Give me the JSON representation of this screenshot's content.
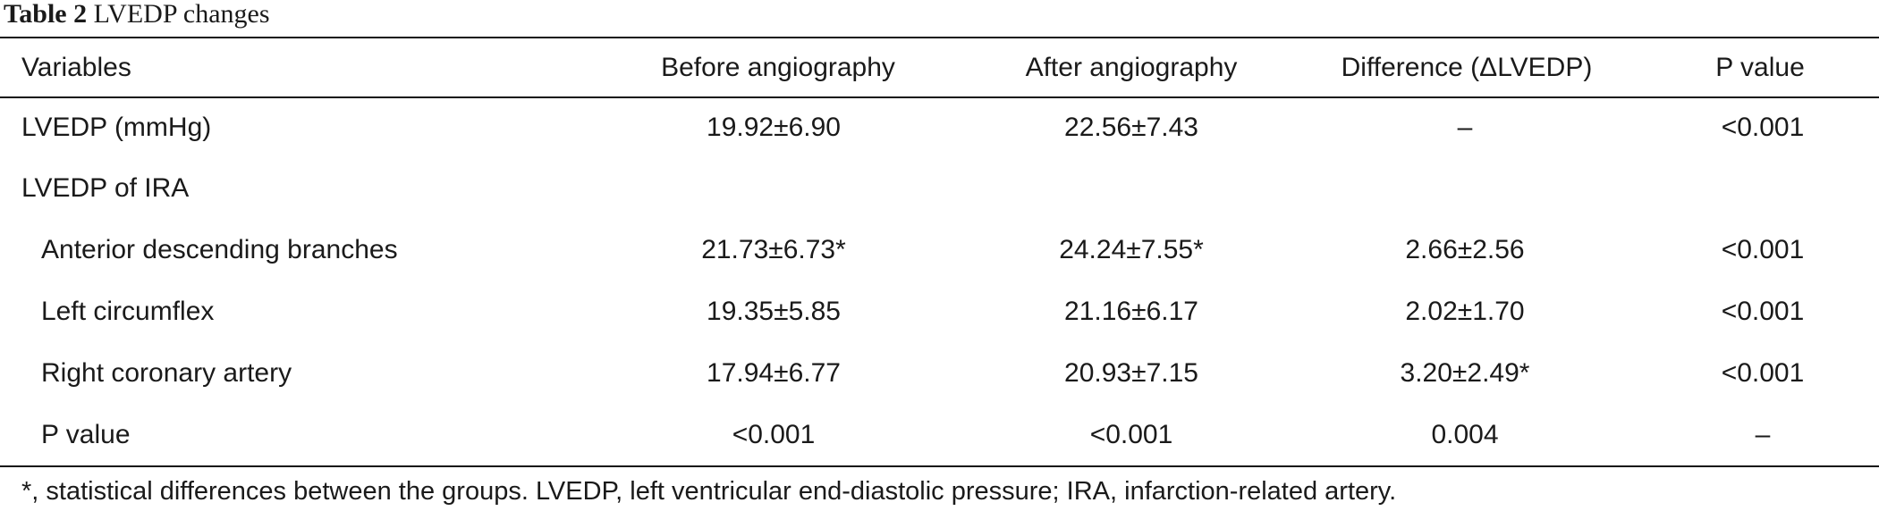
{
  "caption": {
    "label": "Table 2",
    "title": "LVEDP changes"
  },
  "table": {
    "headers": [
      "Variables",
      "Before angiography",
      "After angiography",
      "Difference (ΔLVEDP)",
      "P value"
    ],
    "rows": [
      {
        "cells": [
          "LVEDP (mmHg)",
          "19.92±6.90",
          "22.56±7.43",
          "–",
          "<0.001"
        ]
      },
      {
        "cells": [
          "LVEDP of IRA",
          "",
          "",
          "",
          ""
        ]
      },
      {
        "cells": [
          "Anterior descending branches",
          "21.73±6.73*",
          "24.24±7.55*",
          "2.66±2.56",
          "<0.001"
        ]
      },
      {
        "cells": [
          "Left circumflex",
          "19.35±5.85",
          "21.16±6.17",
          "2.02±1.70",
          "<0.001"
        ]
      },
      {
        "cells": [
          "Right coronary artery",
          "17.94±6.77",
          "20.93±7.15",
          "3.20±2.49*",
          "<0.001"
        ]
      },
      {
        "cells": [
          "P value",
          "<0.001",
          "<0.001",
          "0.004",
          "–"
        ]
      }
    ]
  },
  "footnote": "*, statistical differences between the groups. LVEDP, left ventricular end-diastolic pressure; IRA, infarction-related artery."
}
